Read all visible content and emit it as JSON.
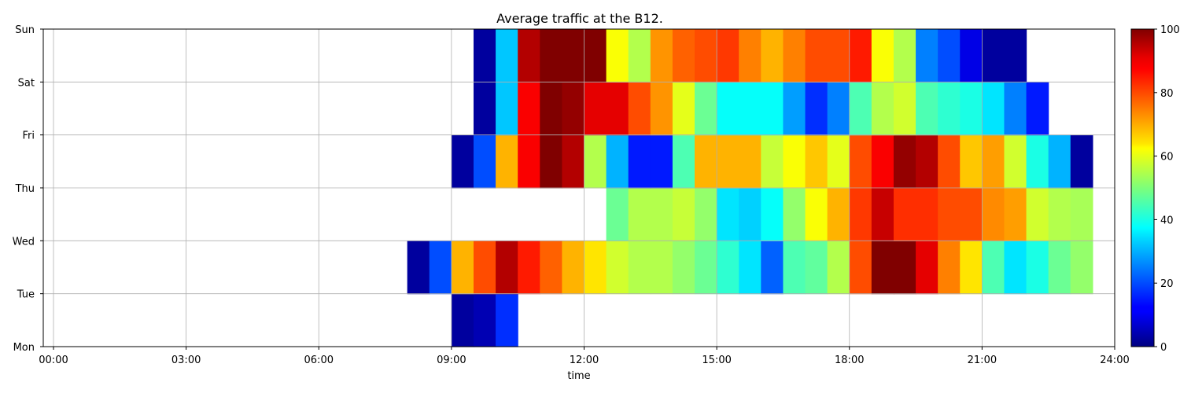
{
  "chart_data": {
    "type": "heatmap",
    "title": "Average traffic at the B12.",
    "xlabel": "time",
    "ylabel": "",
    "x_ticks": [
      "00:00",
      "03:00",
      "06:00",
      "09:00",
      "12:00",
      "15:00",
      "18:00",
      "21:00",
      "24:00"
    ],
    "y_ticks": [
      "Mon",
      "Tue",
      "Wed",
      "Thu",
      "Fri",
      "Sat",
      "Sun"
    ],
    "colorbar": {
      "min": 0,
      "max": 100,
      "ticks": [
        "0",
        "20",
        "40",
        "60",
        "80",
        "100"
      ],
      "colormap": "jet"
    },
    "grid": true,
    "bin_hours": 0.5,
    "rows": [
      {
        "label": "Mon-Tue",
        "start": "09:00",
        "values": [
          3,
          5,
          17
        ]
      },
      {
        "label": "Tue-Wed",
        "start": "08:00",
        "values": [
          3,
          20,
          70,
          80,
          95,
          85,
          78,
          70,
          65,
          58,
          55,
          55,
          52,
          48,
          42,
          35,
          22,
          45,
          47,
          55,
          80,
          100,
          100,
          90,
          75,
          65,
          45,
          35,
          40,
          48,
          52
        ]
      },
      {
        "label": "Wed-Thu",
        "start": "12:30",
        "values": [
          48,
          55,
          55,
          57,
          52,
          35,
          33,
          38,
          52,
          62,
          70,
          82,
          93,
          83,
          83,
          80,
          80,
          74,
          72,
          58,
          55,
          54
        ]
      },
      {
        "label": "Thu-Fri",
        "start": "09:00",
        "values": [
          3,
          20,
          70,
          88,
          100,
          95,
          55,
          30,
          15,
          15,
          45,
          70,
          70,
          70,
          57,
          62,
          68,
          60,
          80,
          88,
          98,
          95,
          80,
          68,
          72,
          58,
          40,
          30,
          3
        ]
      },
      {
        "label": "Fri-Sat",
        "start": "09:30",
        "values": [
          3,
          32,
          88,
          100,
          98,
          90,
          90,
          80,
          73,
          60,
          48,
          38,
          38,
          38,
          28,
          17,
          25,
          45,
          55,
          58,
          45,
          42,
          40,
          35,
          25,
          15
        ]
      },
      {
        "label": "Sat-Sun",
        "start": "09:30",
        "values": [
          3,
          32,
          95,
          100,
          100,
          100,
          62,
          55,
          73,
          78,
          80,
          82,
          75,
          70,
          75,
          80,
          80,
          85,
          62,
          55,
          25,
          20,
          10,
          3,
          3
        ]
      }
    ]
  }
}
